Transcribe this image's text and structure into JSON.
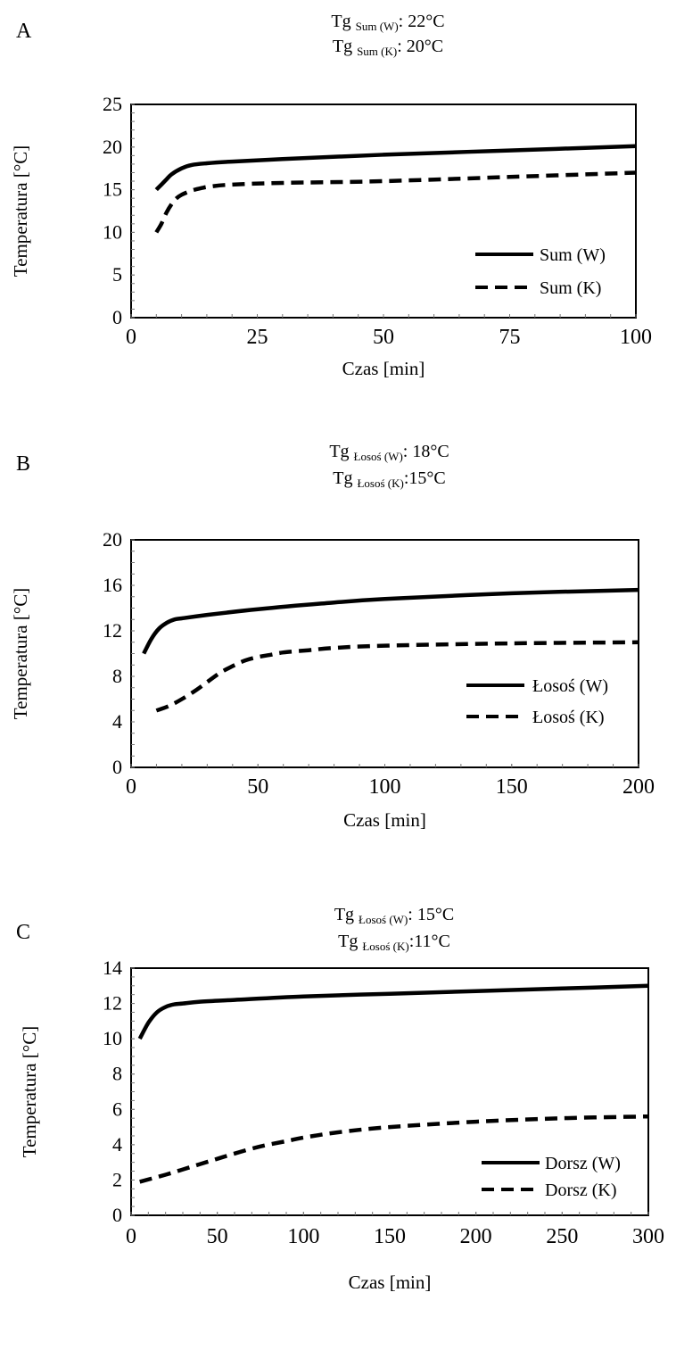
{
  "chart_data": [
    {
      "panel_label": "A",
      "type": "line",
      "annotation": [
        {
          "prefix": "Tg ",
          "sub": "Sum (W)",
          "suffix": ": 22°C"
        },
        {
          "prefix": "Tg ",
          "sub": "Sum (K)",
          "suffix": ": 20°C"
        }
      ],
      "xlabel": "Czas [min]",
      "ylabel": "Temperatura [°C]",
      "xlim": [
        0,
        100
      ],
      "ylim": [
        0,
        25
      ],
      "xticks": [
        0,
        25,
        50,
        75,
        100
      ],
      "yticks": [
        0,
        5,
        10,
        15,
        20,
        25
      ],
      "legend_position": "bottom-right",
      "series": [
        {
          "name": "Sum (W)",
          "style": "solid",
          "x": [
            5,
            6,
            7,
            8,
            10,
            12,
            15,
            20,
            30,
            50,
            75,
            100
          ],
          "y": [
            15,
            15.6,
            16.2,
            16.8,
            17.5,
            17.9,
            18.1,
            18.3,
            18.6,
            19.1,
            19.6,
            20.1
          ]
        },
        {
          "name": "Sum (K)",
          "style": "dashed",
          "x": [
            5,
            6,
            7,
            8,
            9,
            10,
            12,
            14,
            16,
            20,
            30,
            50,
            75,
            100
          ],
          "y": [
            10,
            11,
            12.3,
            13.3,
            14,
            14.4,
            14.9,
            15.2,
            15.4,
            15.6,
            15.8,
            16,
            16.5,
            17
          ]
        }
      ]
    },
    {
      "panel_label": "B",
      "type": "line",
      "annotation": [
        {
          "prefix": "Tg ",
          "sub": "Łosoś (W)",
          "suffix": ": 18°C"
        },
        {
          "prefix": "Tg ",
          "sub": "Łosoś (K)",
          "suffix": ":15°C"
        }
      ],
      "xlabel": "Czas [min]",
      "ylabel": "Temperatura [°C]",
      "xlim": [
        0,
        200
      ],
      "ylim": [
        0,
        20
      ],
      "xticks": [
        0,
        50,
        100,
        150,
        200
      ],
      "yticks": [
        0,
        4,
        8,
        12,
        16,
        20
      ],
      "legend_position": "bottom-right",
      "series": [
        {
          "name": "Łosoś (W)",
          "style": "solid",
          "x": [
            5,
            8,
            11,
            14,
            17,
            20,
            30,
            50,
            75,
            100,
            150,
            200
          ],
          "y": [
            10,
            11.3,
            12.2,
            12.7,
            13,
            13.1,
            13.4,
            13.9,
            14.4,
            14.8,
            15.3,
            15.6
          ]
        },
        {
          "name": "Łosoś (K)",
          "style": "dashed",
          "x": [
            10,
            15,
            20,
            25,
            30,
            35,
            40,
            45,
            50,
            55,
            60,
            70,
            80,
            100,
            150,
            200
          ],
          "y": [
            5,
            5.4,
            6,
            6.7,
            7.5,
            8.3,
            8.9,
            9.4,
            9.7,
            9.9,
            10.1,
            10.3,
            10.5,
            10.7,
            10.9,
            11
          ]
        }
      ]
    },
    {
      "panel_label": "C",
      "type": "line",
      "annotation": [
        {
          "prefix": "Tg ",
          "sub": "Łosoś (W)",
          "suffix": ": 15°C"
        },
        {
          "prefix": "Tg ",
          "sub": "Łosoś (K)",
          "suffix": ":11°C"
        }
      ],
      "xlabel": "Czas [min]",
      "ylabel": "Temperatura [°C]",
      "xlim": [
        0,
        300
      ],
      "ylim": [
        0,
        14
      ],
      "xticks": [
        0,
        50,
        100,
        150,
        200,
        250,
        300
      ],
      "yticks": [
        0,
        2,
        4,
        6,
        8,
        10,
        12,
        14
      ],
      "legend_position": "bottom-right",
      "series": [
        {
          "name": "Dorsz (W)",
          "style": "solid",
          "x": [
            5,
            10,
            15,
            20,
            25,
            30,
            40,
            60,
            100,
            150,
            200,
            250,
            300
          ],
          "y": [
            10,
            10.9,
            11.5,
            11.8,
            11.95,
            12,
            12.1,
            12.2,
            12.4,
            12.55,
            12.7,
            12.85,
            13
          ]
        },
        {
          "name": "Dorsz (K)",
          "style": "dashed",
          "x": [
            5,
            20,
            30,
            40,
            50,
            60,
            75,
            90,
            100,
            120,
            150,
            200,
            250,
            300
          ],
          "y": [
            1.9,
            2.3,
            2.6,
            2.9,
            3.2,
            3.5,
            3.9,
            4.2,
            4.4,
            4.7,
            5,
            5.3,
            5.5,
            5.6
          ]
        }
      ]
    }
  ]
}
